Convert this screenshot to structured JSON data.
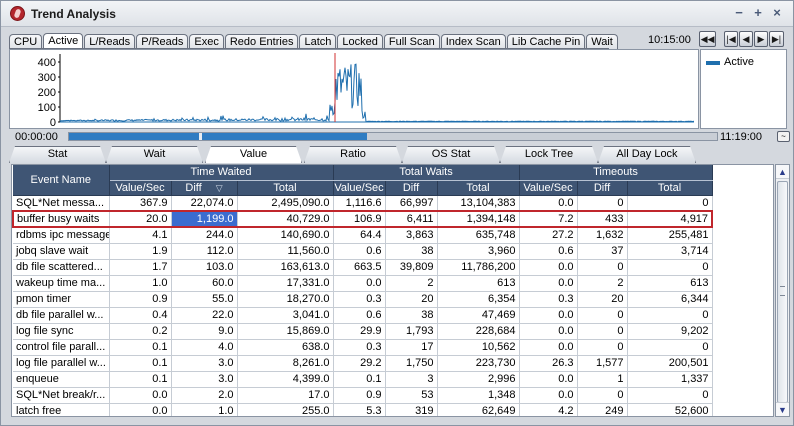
{
  "window": {
    "title": "Trend Analysis",
    "controls": [
      "−",
      "+",
      "×"
    ]
  },
  "metric_tabs": [
    {
      "label": "CPU",
      "active": false
    },
    {
      "label": "Active",
      "active": true
    },
    {
      "label": "L/Reads",
      "active": false
    },
    {
      "label": "P/Reads",
      "active": false
    },
    {
      "label": "Exec",
      "active": false
    },
    {
      "label": "Redo Entries",
      "active": false
    },
    {
      "label": "Latch",
      "active": false
    },
    {
      "label": "Locked",
      "active": false
    },
    {
      "label": "Full Scan",
      "active": false
    },
    {
      "label": "Index Scan",
      "active": false
    },
    {
      "label": "Lib Cache Pin",
      "active": false
    },
    {
      "label": "Wait",
      "active": false
    }
  ],
  "clock": "10:15:00",
  "nav_buttons": [
    "◀◀",
    "|◀",
    "◀",
    "▶",
    "▶|"
  ],
  "chart": {
    "y_ticks": [
      "400",
      "300",
      "200",
      "100",
      "0"
    ],
    "legend": [
      {
        "name": "Active",
        "color": "#1f6fae"
      }
    ],
    "marker_color": "#d03030"
  },
  "timeline": {
    "start": "00:00:00",
    "end": "11:19:00",
    "progress": 0.46,
    "button_label": "~"
  },
  "view_tabs": [
    {
      "label": "Stat",
      "active": false
    },
    {
      "label": "Wait",
      "active": false
    },
    {
      "label": "Value",
      "active": true
    },
    {
      "label": "Ratio",
      "active": false
    },
    {
      "label": "OS Stat",
      "active": false
    },
    {
      "label": "Lock Tree",
      "active": false
    },
    {
      "label": "All Day Lock",
      "active": false
    }
  ],
  "table": {
    "col_event": "Event Name",
    "groups": [
      "Time Waited",
      "Total Waits",
      "Timeouts"
    ],
    "sub_value": "Value/Sec",
    "sub_diff": "Diff",
    "sub_total": "Total",
    "sort_indicator": "▽",
    "rows": [
      [
        "SQL*Net messa...",
        "367.9",
        "22,074.0",
        "2,495,090.0",
        "1,116.6",
        "66,997",
        "13,104,383",
        "0.0",
        "0",
        "0"
      ],
      [
        "buffer busy waits",
        "20.0",
        "1,199.0",
        "40,729.0",
        "106.9",
        "6,411",
        "1,394,148",
        "7.2",
        "433",
        "4,917"
      ],
      [
        "rdbms ipc message",
        "4.1",
        "244.0",
        "140,690.0",
        "64.4",
        "3,863",
        "635,748",
        "27.2",
        "1,632",
        "255,481"
      ],
      [
        "jobq slave wait",
        "1.9",
        "112.0",
        "11,560.0",
        "0.6",
        "38",
        "3,960",
        "0.6",
        "37",
        "3,714"
      ],
      [
        "db file scattered...",
        "1.7",
        "103.0",
        "163,613.0",
        "663.5",
        "39,809",
        "11,786,200",
        "0.0",
        "0",
        "0"
      ],
      [
        "wakeup time ma...",
        "1.0",
        "60.0",
        "17,331.0",
        "0.0",
        "2",
        "613",
        "0.0",
        "2",
        "613"
      ],
      [
        "pmon timer",
        "0.9",
        "55.0",
        "18,270.0",
        "0.3",
        "20",
        "6,354",
        "0.3",
        "20",
        "6,344"
      ],
      [
        "db file parallel w...",
        "0.4",
        "22.0",
        "3,041.0",
        "0.6",
        "38",
        "47,469",
        "0.0",
        "0",
        "0"
      ],
      [
        "log file sync",
        "0.2",
        "9.0",
        "15,869.0",
        "29.9",
        "1,793",
        "228,684",
        "0.0",
        "0",
        "9,202"
      ],
      [
        "control file parall...",
        "0.1",
        "4.0",
        "638.0",
        "0.3",
        "17",
        "10,562",
        "0.0",
        "0",
        "0"
      ],
      [
        "log file parallel w...",
        "0.1",
        "3.0",
        "8,261.0",
        "29.2",
        "1,750",
        "223,730",
        "26.3",
        "1,577",
        "200,501"
      ],
      [
        "enqueue",
        "0.1",
        "3.0",
        "4,399.0",
        "0.1",
        "3",
        "2,996",
        "0.0",
        "1",
        "1,337"
      ],
      [
        "SQL*Net break/r...",
        "0.0",
        "2.0",
        "17.0",
        "0.9",
        "53",
        "1,348",
        "0.0",
        "0",
        "0"
      ],
      [
        "latch free",
        "0.0",
        "1.0",
        "255.0",
        "5.3",
        "319",
        "62,649",
        "4.2",
        "249",
        "52,600"
      ]
    ],
    "selected_row": 1
  },
  "scrollbar": {
    "up": "▲",
    "down": "▼"
  }
}
